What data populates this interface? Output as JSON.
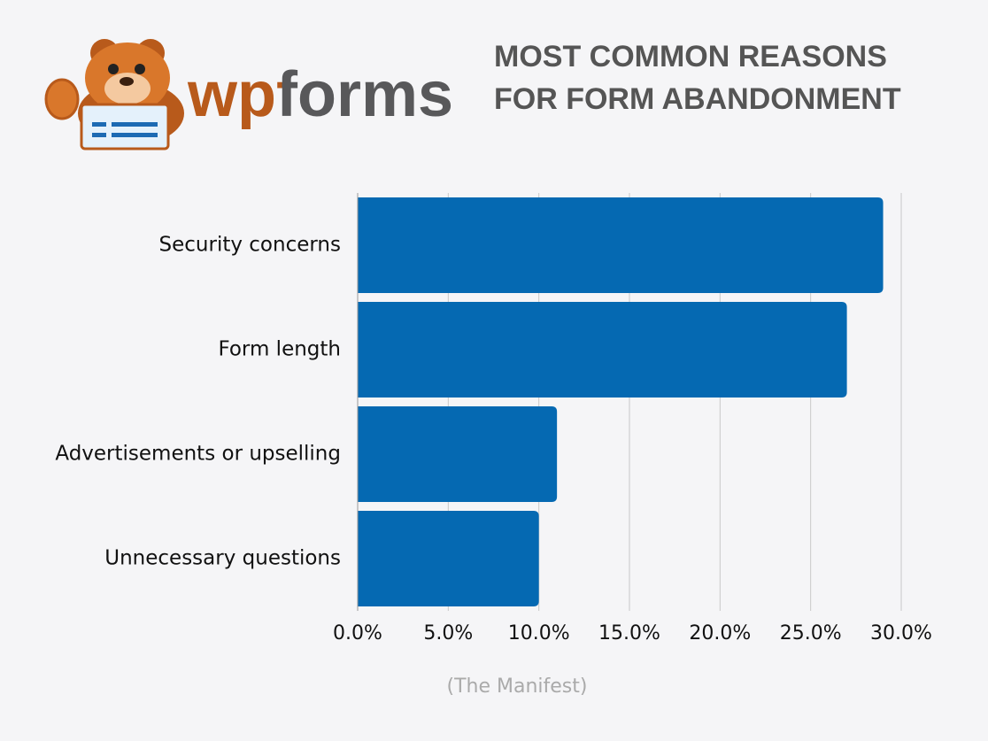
{
  "brand": "wpforms",
  "chart_data": {
    "type": "hbar",
    "title": "MOST COMMON REASONS FOR FORM ABANDONMENT",
    "categories": [
      "Security concerns",
      "Form length",
      "Advertisements or upselling",
      "Unnecessary questions"
    ],
    "values": [
      29,
      27,
      11,
      10
    ],
    "color": "#0569b2",
    "xlim": [
      0,
      30
    ],
    "xticks": [
      {
        "value": 0,
        "label": "0.0%"
      },
      {
        "value": 5,
        "label": "5.0%"
      },
      {
        "value": 10,
        "label": "10.0%"
      },
      {
        "value": 15,
        "label": "15.0%"
      },
      {
        "value": 20,
        "label": "20.0%"
      },
      {
        "value": 25,
        "label": "25.0%"
      },
      {
        "value": 30,
        "label": "30.0%"
      }
    ],
    "grid": true,
    "source": "(The Manifest)"
  }
}
